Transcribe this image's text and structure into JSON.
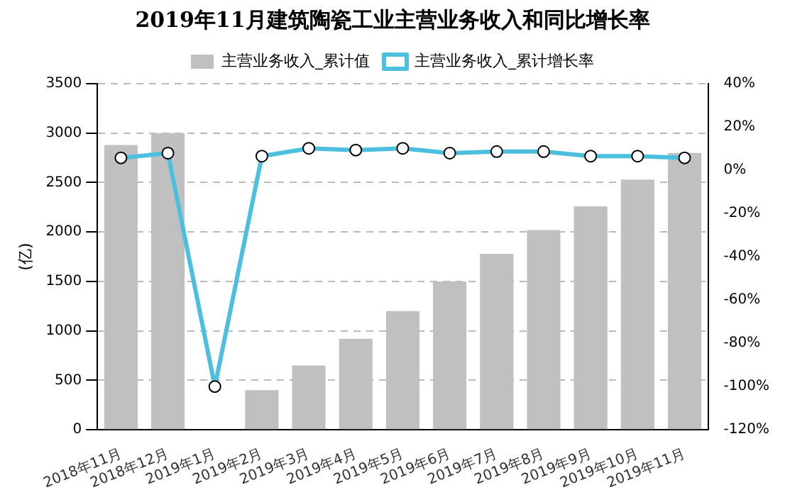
{
  "chart_data": {
    "type": "bar",
    "title": "2019年11月建筑陶瓷工业主营业务收入和同比增长率",
    "ylabel": "(亿)",
    "categories": [
      "2018年11月",
      "2018年12月",
      "2019年1月",
      "2019年2月",
      "2019年3月",
      "2019年4月",
      "2019年5月",
      "2019年6月",
      "2019年7月",
      "2019年8月",
      "2019年9月",
      "2019年10月",
      "2019年11月"
    ],
    "series": [
      {
        "name": "主营业务收入_累计值",
        "color": "#c0c0c0",
        "values": [
          2880,
          3000,
          null,
          400,
          650,
          920,
          1200,
          1500,
          1780,
          2020,
          2260,
          2530,
          2800
        ]
      },
      {
        "name": "主营业务收入_累计增长率",
        "type": "line",
        "axis": "y2",
        "color": "#4cbfde",
        "marker": "circle",
        "values": [
          5.7,
          7.9,
          -100,
          6.5,
          10.1,
          9.3,
          10.1,
          7.9,
          8.6,
          8.6,
          6.5,
          6.5,
          5.7
        ]
      }
    ],
    "ylim": [
      0,
      3500
    ],
    "yticks": [
      0,
      500,
      1000,
      1500,
      2000,
      2500,
      3000,
      3500
    ],
    "y2lim": [
      -120,
      40
    ],
    "y2ticks": [
      {
        "value": -120,
        "label": "-120%"
      },
      {
        "value": -100,
        "label": "-100%"
      },
      {
        "value": -80,
        "label": "-80%"
      },
      {
        "value": -60,
        "label": "-60%"
      },
      {
        "value": -40,
        "label": "-40%"
      },
      {
        "value": -20,
        "label": "-20%"
      },
      {
        "value": 0,
        "label": "0%"
      },
      {
        "value": 20,
        "label": "20%"
      },
      {
        "value": 40,
        "label": "40%"
      }
    ],
    "grid": "y",
    "legend": "top",
    "line_style": "solid"
  }
}
